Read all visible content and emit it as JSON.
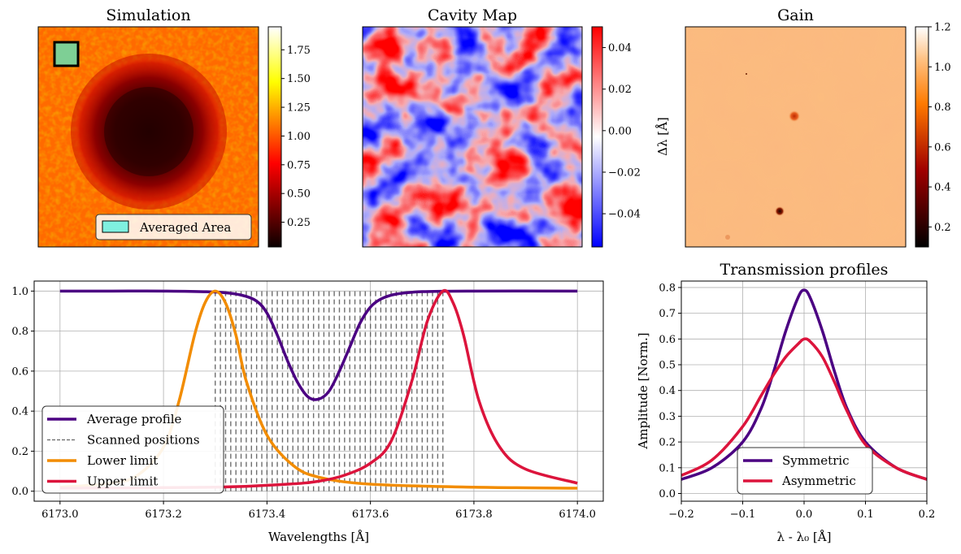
{
  "panels": {
    "simulation": {
      "title": "Simulation",
      "colorbar_ticks": [
        "1.75",
        "1.50",
        "1.25",
        "1.00",
        "0.75",
        "0.50",
        "0.25"
      ],
      "legend_label": "Averaged Area",
      "colormap": "hot"
    },
    "cavity": {
      "title": "Cavity Map",
      "colorbar_ticks": [
        "0.04",
        "0.02",
        "0.00",
        "−0.02",
        "−0.04"
      ],
      "colorbar_label": "Δλ [Å]",
      "colormap": "bwr"
    },
    "gain": {
      "title": "Gain",
      "colorbar_ticks": [
        "1.2",
        "1.0",
        "0.8",
        "0.6",
        "0.4",
        "0.2"
      ],
      "colormap": "gist_heat"
    }
  },
  "chart_data": [
    {
      "type": "line",
      "title": "",
      "xlabel": "Wavelengths [Å]",
      "ylabel": "",
      "xlim": [
        6172.95,
        6174.05
      ],
      "ylim": [
        -0.05,
        1.05
      ],
      "x_ticks": [
        "6173.0",
        "6173.2",
        "6173.4",
        "6173.6",
        "6173.8",
        "6174.0"
      ],
      "y_ticks": [
        "0.0",
        "0.2",
        "0.4",
        "0.6",
        "0.8",
        "1.0"
      ],
      "grid": true,
      "legend_position": "lower-left",
      "scanned_positions": {
        "start": 6173.3,
        "end": 6173.74,
        "count": 45
      },
      "series": [
        {
          "name": "Average profile",
          "color": "#4b0082",
          "x": [
            6173.0,
            6173.1,
            6173.2,
            6173.3,
            6173.35,
            6173.38,
            6173.4,
            6173.42,
            6173.44,
            6173.46,
            6173.48,
            6173.5,
            6173.52,
            6173.54,
            6173.56,
            6173.58,
            6173.6,
            6173.62,
            6173.65,
            6173.7,
            6173.8,
            6174.0
          ],
          "y": [
            1.0,
            1.0,
            1.0,
            0.995,
            0.98,
            0.95,
            0.89,
            0.78,
            0.65,
            0.54,
            0.47,
            0.46,
            0.5,
            0.6,
            0.72,
            0.84,
            0.92,
            0.96,
            0.985,
            0.997,
            1.0,
            1.0
          ]
        },
        {
          "name": "Scanned positions",
          "color": "#666666"
        },
        {
          "name": "Lower limit",
          "color": "#f28c00",
          "x": [
            6173.0,
            6173.1,
            6173.15,
            6173.2,
            6173.23,
            6173.26,
            6173.28,
            6173.3,
            6173.32,
            6173.34,
            6173.36,
            6173.4,
            6173.45,
            6173.5,
            6173.6,
            6173.8,
            6174.0
          ],
          "y": [
            0.02,
            0.04,
            0.08,
            0.22,
            0.45,
            0.78,
            0.94,
            1.0,
            0.94,
            0.78,
            0.55,
            0.28,
            0.13,
            0.07,
            0.035,
            0.02,
            0.015
          ]
        },
        {
          "name": "Upper limit",
          "color": "#dc143c",
          "x": [
            6173.0,
            6173.3,
            6173.44,
            6173.5,
            6173.55,
            6173.6,
            6173.64,
            6173.68,
            6173.71,
            6173.74,
            6173.76,
            6173.78,
            6173.81,
            6173.85,
            6173.9,
            6174.0
          ],
          "y": [
            0.015,
            0.02,
            0.035,
            0.05,
            0.08,
            0.14,
            0.25,
            0.55,
            0.85,
            1.0,
            0.94,
            0.78,
            0.45,
            0.22,
            0.11,
            0.04
          ]
        }
      ]
    },
    {
      "type": "line",
      "title": "Transmission profiles",
      "xlabel": "λ - λ₀ [Å]",
      "ylabel": "Amplitude [Norm.]",
      "xlim": [
        -0.2,
        0.2
      ],
      "ylim": [
        -0.03,
        0.825
      ],
      "x_ticks": [
        "−0.2",
        "−0.1",
        "0.0",
        "0.1",
        "0.2"
      ],
      "y_ticks": [
        "0.0",
        "0.1",
        "0.2",
        "0.3",
        "0.4",
        "0.5",
        "0.6",
        "0.7",
        "0.8"
      ],
      "grid": true,
      "legend_position": "lower-center",
      "series": [
        {
          "name": "Symmetric",
          "color": "#4b0082",
          "x": [
            -0.2,
            -0.15,
            -0.1,
            -0.07,
            -0.05,
            -0.03,
            -0.01,
            0.0,
            0.01,
            0.03,
            0.05,
            0.07,
            0.1,
            0.15,
            0.2
          ],
          "y": [
            0.055,
            0.1,
            0.2,
            0.33,
            0.47,
            0.63,
            0.76,
            0.79,
            0.76,
            0.63,
            0.47,
            0.33,
            0.2,
            0.1,
            0.055
          ]
        },
        {
          "name": "Asymmetric",
          "color": "#dc143c",
          "x": [
            -0.2,
            -0.15,
            -0.1,
            -0.07,
            -0.05,
            -0.03,
            -0.01,
            0.0,
            0.01,
            0.03,
            0.05,
            0.07,
            0.1,
            0.15,
            0.2
          ],
          "y": [
            0.07,
            0.13,
            0.26,
            0.38,
            0.46,
            0.53,
            0.58,
            0.6,
            0.59,
            0.53,
            0.43,
            0.32,
            0.19,
            0.1,
            0.055
          ]
        }
      ]
    }
  ]
}
